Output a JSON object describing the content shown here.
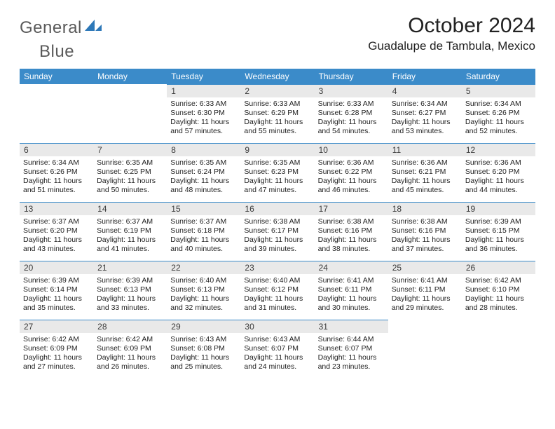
{
  "brand": {
    "name_a": "General",
    "name_b": "Blue"
  },
  "title": "October 2024",
  "location": "Guadalupe de Tambula, Mexico",
  "colors": {
    "header_bg": "#3b8bc9",
    "header_text": "#ffffff",
    "daynum_bg": "#e9e9e9",
    "text": "#222222",
    "logo_gray": "#5a5a5a",
    "logo_blue": "#2d78b8"
  },
  "typography": {
    "title_fontsize": 30,
    "location_fontsize": 17,
    "dow_fontsize": 12,
    "daynum_fontsize": 12,
    "body_fontsize": 10.5
  },
  "dow": [
    "Sunday",
    "Monday",
    "Tuesday",
    "Wednesday",
    "Thursday",
    "Friday",
    "Saturday"
  ],
  "weeks": [
    [
      null,
      null,
      {
        "n": "1",
        "sr": "6:33 AM",
        "ss": "6:30 PM",
        "dl": "11 hours and 57 minutes."
      },
      {
        "n": "2",
        "sr": "6:33 AM",
        "ss": "6:29 PM",
        "dl": "11 hours and 55 minutes."
      },
      {
        "n": "3",
        "sr": "6:33 AM",
        "ss": "6:28 PM",
        "dl": "11 hours and 54 minutes."
      },
      {
        "n": "4",
        "sr": "6:34 AM",
        "ss": "6:27 PM",
        "dl": "11 hours and 53 minutes."
      },
      {
        "n": "5",
        "sr": "6:34 AM",
        "ss": "6:26 PM",
        "dl": "11 hours and 52 minutes."
      }
    ],
    [
      {
        "n": "6",
        "sr": "6:34 AM",
        "ss": "6:26 PM",
        "dl": "11 hours and 51 minutes."
      },
      {
        "n": "7",
        "sr": "6:35 AM",
        "ss": "6:25 PM",
        "dl": "11 hours and 50 minutes."
      },
      {
        "n": "8",
        "sr": "6:35 AM",
        "ss": "6:24 PM",
        "dl": "11 hours and 48 minutes."
      },
      {
        "n": "9",
        "sr": "6:35 AM",
        "ss": "6:23 PM",
        "dl": "11 hours and 47 minutes."
      },
      {
        "n": "10",
        "sr": "6:36 AM",
        "ss": "6:22 PM",
        "dl": "11 hours and 46 minutes."
      },
      {
        "n": "11",
        "sr": "6:36 AM",
        "ss": "6:21 PM",
        "dl": "11 hours and 45 minutes."
      },
      {
        "n": "12",
        "sr": "6:36 AM",
        "ss": "6:20 PM",
        "dl": "11 hours and 44 minutes."
      }
    ],
    [
      {
        "n": "13",
        "sr": "6:37 AM",
        "ss": "6:20 PM",
        "dl": "11 hours and 43 minutes."
      },
      {
        "n": "14",
        "sr": "6:37 AM",
        "ss": "6:19 PM",
        "dl": "11 hours and 41 minutes."
      },
      {
        "n": "15",
        "sr": "6:37 AM",
        "ss": "6:18 PM",
        "dl": "11 hours and 40 minutes."
      },
      {
        "n": "16",
        "sr": "6:38 AM",
        "ss": "6:17 PM",
        "dl": "11 hours and 39 minutes."
      },
      {
        "n": "17",
        "sr": "6:38 AM",
        "ss": "6:16 PM",
        "dl": "11 hours and 38 minutes."
      },
      {
        "n": "18",
        "sr": "6:38 AM",
        "ss": "6:16 PM",
        "dl": "11 hours and 37 minutes."
      },
      {
        "n": "19",
        "sr": "6:39 AM",
        "ss": "6:15 PM",
        "dl": "11 hours and 36 minutes."
      }
    ],
    [
      {
        "n": "20",
        "sr": "6:39 AM",
        "ss": "6:14 PM",
        "dl": "11 hours and 35 minutes."
      },
      {
        "n": "21",
        "sr": "6:39 AM",
        "ss": "6:13 PM",
        "dl": "11 hours and 33 minutes."
      },
      {
        "n": "22",
        "sr": "6:40 AM",
        "ss": "6:13 PM",
        "dl": "11 hours and 32 minutes."
      },
      {
        "n": "23",
        "sr": "6:40 AM",
        "ss": "6:12 PM",
        "dl": "11 hours and 31 minutes."
      },
      {
        "n": "24",
        "sr": "6:41 AM",
        "ss": "6:11 PM",
        "dl": "11 hours and 30 minutes."
      },
      {
        "n": "25",
        "sr": "6:41 AM",
        "ss": "6:11 PM",
        "dl": "11 hours and 29 minutes."
      },
      {
        "n": "26",
        "sr": "6:42 AM",
        "ss": "6:10 PM",
        "dl": "11 hours and 28 minutes."
      }
    ],
    [
      {
        "n": "27",
        "sr": "6:42 AM",
        "ss": "6:09 PM",
        "dl": "11 hours and 27 minutes."
      },
      {
        "n": "28",
        "sr": "6:42 AM",
        "ss": "6:09 PM",
        "dl": "11 hours and 26 minutes."
      },
      {
        "n": "29",
        "sr": "6:43 AM",
        "ss": "6:08 PM",
        "dl": "11 hours and 25 minutes."
      },
      {
        "n": "30",
        "sr": "6:43 AM",
        "ss": "6:07 PM",
        "dl": "11 hours and 24 minutes."
      },
      {
        "n": "31",
        "sr": "6:44 AM",
        "ss": "6:07 PM",
        "dl": "11 hours and 23 minutes."
      },
      null,
      null
    ]
  ],
  "labels": {
    "sunrise": "Sunrise:",
    "sunset": "Sunset:",
    "daylight": "Daylight:"
  }
}
